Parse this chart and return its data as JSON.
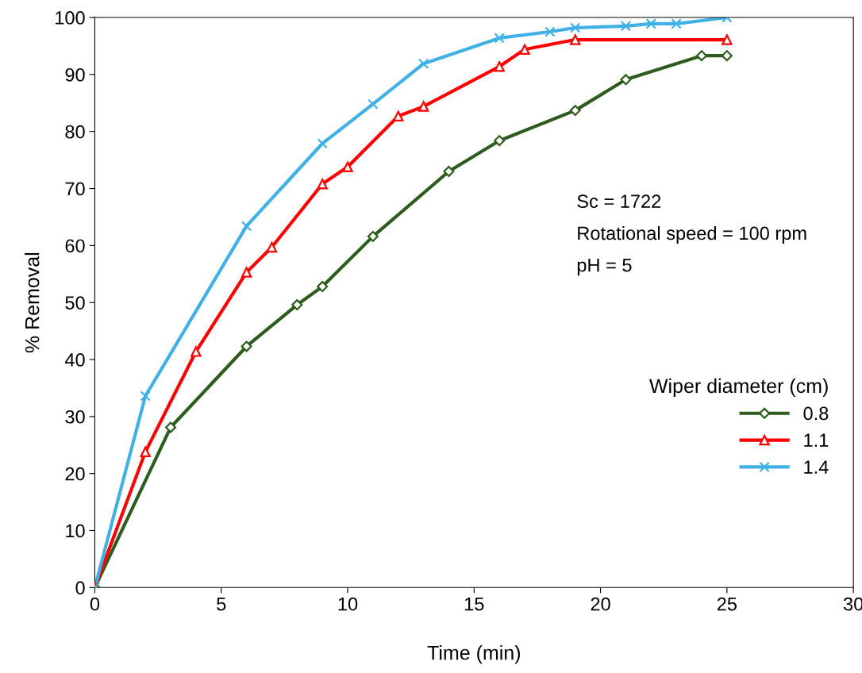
{
  "chart_data": {
    "type": "line",
    "xlabel": "Time (min)",
    "ylabel": "% Removal",
    "xlim": [
      0,
      30
    ],
    "xticks": [
      0,
      5,
      10,
      15,
      20,
      25,
      30
    ],
    "ylim": [
      0,
      100
    ],
    "yticks": [
      0,
      10,
      20,
      30,
      40,
      50,
      60,
      70,
      80,
      90,
      100
    ],
    "grid": false,
    "legend": "right",
    "legend_title": "Wiper diameter (cm)",
    "line_style": "solid",
    "annotations": [
      "Sc = 1722",
      "Rotational speed = 100 rpm",
      "pH = 5"
    ],
    "series": [
      {
        "name": "0.8",
        "color": "#2e5c1e",
        "marker": "diamond",
        "x": [
          0,
          3,
          6,
          8,
          9,
          11,
          14,
          16,
          19,
          21,
          24,
          25
        ],
        "values": [
          0,
          28.1,
          42.3,
          49.6,
          52.8,
          61.6,
          73.0,
          78.4,
          83.7,
          89.1,
          93.3,
          93.3
        ]
      },
      {
        "name": "1.1",
        "color": "#ff0000",
        "marker": "triangle",
        "x": [
          0,
          2,
          4,
          6,
          7,
          9,
          10,
          12,
          13,
          16,
          17,
          19,
          25
        ],
        "values": [
          0,
          23.8,
          41.4,
          55.3,
          59.7,
          70.8,
          73.8,
          82.7,
          84.4,
          91.4,
          94.4,
          96.1,
          96.1
        ]
      },
      {
        "name": "1.4",
        "color": "#41b0e4",
        "marker": "cross",
        "x": [
          0,
          2,
          6,
          9,
          11,
          13,
          16,
          18,
          19,
          21,
          22,
          23,
          25
        ],
        "values": [
          0,
          33.6,
          63.4,
          77.9,
          84.8,
          91.9,
          96.4,
          97.5,
          98.2,
          98.5,
          98.9,
          98.9,
          100
        ]
      }
    ]
  }
}
